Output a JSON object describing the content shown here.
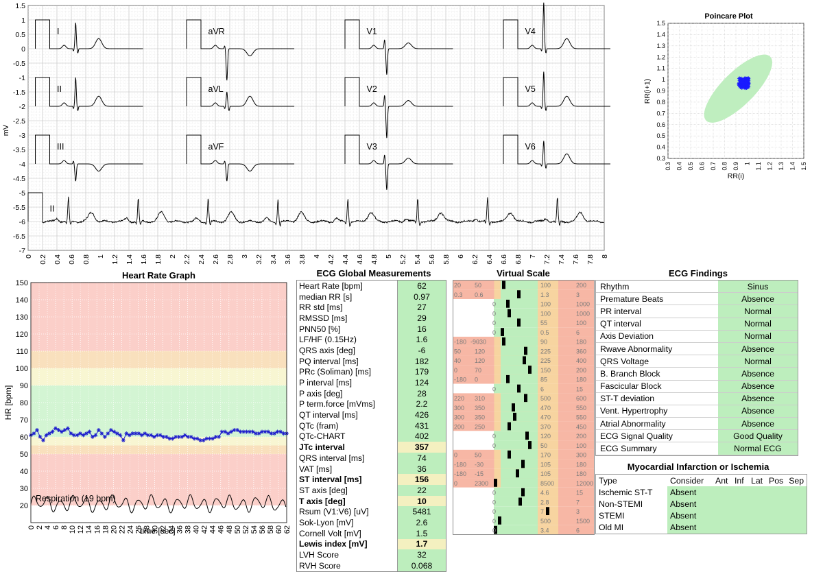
{
  "ecg": {
    "ylabel": "mV",
    "yticks": [
      "1.5",
      "1",
      "0.5",
      "0",
      "-0.5",
      "-1",
      "-1.5",
      "-2",
      "-2.5",
      "-3",
      "-3.5",
      "-4",
      "-4.5",
      "-5",
      "-5.5",
      "-6",
      "-6.5",
      "-7"
    ],
    "xticks": [
      "0",
      "0.2",
      "0.4",
      "0.6",
      "0.8",
      "1",
      "1.2",
      "1.4",
      "1.6",
      "1.8",
      "2",
      "2.2",
      "2.4",
      "2.6",
      "2.8",
      "3",
      "3.2",
      "3.4",
      "3.6",
      "3.8",
      "4",
      "4.2",
      "4.4",
      "4.6",
      "4.8",
      "5",
      "5.2",
      "5.4",
      "5.6",
      "5.8",
      "6",
      "6.2",
      "6.4",
      "6.6",
      "6.8",
      "7",
      "7.2",
      "7.4",
      "7.6",
      "7.8",
      "8"
    ],
    "leads": [
      "I",
      "aVR",
      "V1",
      "V4",
      "II",
      "aVL",
      "V2",
      "V5",
      "III",
      "aVF",
      "V3",
      "V6"
    ],
    "rhythm_lead": "II",
    "trace_color": "#000000"
  },
  "poincare": {
    "title": "Poincare Plot",
    "xlabel": "RR(i)",
    "ylabel": "RR(i+1)",
    "ticks": [
      "0.3",
      "0.4",
      "0.5",
      "0.6",
      "0.7",
      "0.8",
      "0.9",
      "1",
      "1.1",
      "1.2",
      "1.3",
      "1.4",
      "1.5"
    ],
    "ellipse_color": "#bfeebf",
    "point_color": "#1a1aff"
  },
  "hr_graph": {
    "title": "Heart Rate Graph",
    "ylabel": "HR [bpm]",
    "xlabel": "time [sec]",
    "yticks": [
      "20",
      "30",
      "40",
      "50",
      "60",
      "70",
      "80",
      "90",
      "100",
      "110",
      "120",
      "130",
      "140",
      "150"
    ],
    "xticks": [
      "0",
      "2",
      "4",
      "6",
      "8",
      "10",
      "12",
      "14",
      "16",
      "18",
      "20",
      "22",
      "24",
      "26",
      "28",
      "30",
      "32",
      "34",
      "36",
      "38",
      "40",
      "42",
      "44",
      "46",
      "48",
      "50",
      "52",
      "54",
      "56",
      "58",
      "60",
      "62"
    ],
    "respiration_label": "Respiration (19 bpm)",
    "zone_colors": {
      "red": "#fbcfc9",
      "orange": "#f9e0bd",
      "yellow": "#f8f6d2",
      "green": "#d3f5d3"
    },
    "series_color": "#1a1acc"
  },
  "chart_data": {
    "type": "line",
    "title": "Heart Rate Graph",
    "xlabel": "time [sec]",
    "ylabel": "HR [bpm]",
    "xlim": [
      0,
      62
    ],
    "ylim": [
      10,
      150
    ],
    "series": [
      {
        "values": [
          61,
          62,
          64,
          60,
          58,
          61,
          62,
          63,
          65,
          64,
          63,
          64,
          65,
          62,
          61,
          61,
          62,
          61,
          62,
          63,
          60,
          61,
          64,
          62,
          60,
          62,
          64,
          63,
          62,
          61,
          58,
          62,
          61,
          62,
          62,
          62,
          61,
          62,
          61,
          61,
          60,
          61,
          61,
          60,
          60,
          59,
          59,
          60,
          60,
          60,
          61,
          60,
          60,
          59,
          59,
          58,
          58,
          59,
          59,
          59,
          60,
          60,
          63,
          63,
          62,
          63,
          64,
          64,
          63,
          63,
          63,
          63,
          63,
          62,
          62,
          63,
          63,
          63,
          62,
          62,
          63,
          63,
          62,
          62
        ]
      }
    ]
  },
  "measurements": {
    "title": "ECG Global Measurements",
    "rows": [
      {
        "label": "Heart Rate [bpm]",
        "value": "62"
      },
      {
        "label": "median RR [s]",
        "value": "0.97"
      },
      {
        "label": "RR std [ms]",
        "value": "27"
      },
      {
        "label": "RMSSD [ms]",
        "value": "29"
      },
      {
        "label": "PNN50 [%]",
        "value": "16"
      },
      {
        "label": "LF/HF (0.15Hz)",
        "value": "1.6"
      },
      {
        "label": "QRS axis [deg]",
        "value": "-6"
      },
      {
        "label": "PQ interval [ms]",
        "value": "182"
      },
      {
        "label": "PRc (Soliman) [ms]",
        "value": "179"
      },
      {
        "label": "P interval [ms]",
        "value": "124"
      },
      {
        "label": "P axis [deg]",
        "value": "28"
      },
      {
        "label": "P term.force [mVms]",
        "value": "2.2"
      },
      {
        "label": "QT interval [ms]",
        "value": "426"
      },
      {
        "label": "QTc (fram)",
        "value": "431"
      },
      {
        "label": "QTc-CHART",
        "value": "402"
      },
      {
        "label": "JTc interval",
        "value": "357"
      },
      {
        "label": "QRS interval [ms]",
        "value": "74"
      },
      {
        "label": "VAT [ms]",
        "value": "36"
      },
      {
        "label": "ST interval [ms]",
        "value": "156"
      },
      {
        "label": "ST axis [deg]",
        "value": "22"
      },
      {
        "label": "T axis [deg]",
        "value": "10"
      },
      {
        "label": "Rsum (V1:V6) [uV]",
        "value": "5481"
      },
      {
        "label": "Sok-Lyon [mV]",
        "value": "2.6"
      },
      {
        "label": "Cornell Volt [mV]",
        "value": "1.5"
      },
      {
        "label": "Lewis index [mV]",
        "value": "1.7"
      },
      {
        "label": "LVH Score",
        "value": "32"
      },
      {
        "label": "RVH Score",
        "value": "0.068"
      }
    ]
  },
  "virtual_scale": {
    "title": "Virtual Scale",
    "rows": [
      {
        "labels": [
          "20",
          "50",
          "100",
          "200"
        ]
      },
      {
        "labels": [
          "0.3",
          "0.6",
          "1.3",
          "3"
        ]
      },
      {
        "labels": [
          "0",
          "100",
          "1000"
        ]
      },
      {
        "labels": [
          "0",
          "100",
          "1000"
        ]
      },
      {
        "labels": [
          "0",
          "55",
          "100"
        ]
      },
      {
        "labels": [
          "0",
          "0.5",
          "6"
        ]
      },
      {
        "labels": [
          "-180",
          "-90",
          "-30",
          "90",
          "180"
        ]
      },
      {
        "labels": [
          "50",
          "120",
          "225",
          "360"
        ]
      },
      {
        "labels": [
          "40",
          "120",
          "225",
          "400"
        ]
      },
      {
        "labels": [
          "0",
          "70",
          "150",
          "200"
        ]
      },
      {
        "labels": [
          "-180",
          "0",
          "85",
          "180"
        ]
      },
      {
        "labels": [
          "0",
          "6",
          "15"
        ]
      },
      {
        "labels": [
          "220",
          "310",
          "500",
          "600"
        ]
      },
      {
        "labels": [
          "300",
          "350",
          "470",
          "550"
        ]
      },
      {
        "labels": [
          "300",
          "350",
          "470",
          "550"
        ]
      },
      {
        "labels": [
          "200",
          "250",
          "370",
          "450"
        ]
      },
      {
        "labels": [
          "0",
          "120",
          "200"
        ]
      },
      {
        "labels": [
          "0",
          "50",
          "100"
        ]
      },
      {
        "labels": [
          "0",
          "50",
          "170",
          "300"
        ]
      },
      {
        "labels": [
          "-180",
          "-30",
          "105",
          "180"
        ]
      },
      {
        "labels": [
          "-180",
          "-15",
          "105",
          "180"
        ]
      },
      {
        "labels": [
          "0",
          "2300",
          "8500",
          "12000"
        ]
      },
      {
        "labels": [
          "0",
          "4.6",
          "15"
        ]
      },
      {
        "labels": [
          "0",
          "2.8",
          "7"
        ]
      },
      {
        "labels": [
          "0",
          "7",
          "3"
        ]
      },
      {
        "labels": [
          "0",
          "500",
          "1500"
        ]
      },
      {
        "labels": [
          "0",
          "3.4",
          "6"
        ]
      }
    ]
  },
  "findings": {
    "title": "ECG Findings",
    "rows": [
      {
        "label": "Rhythm",
        "value": "Sinus"
      },
      {
        "label": "Premature Beats",
        "value": "Absence"
      },
      {
        "label": "PR interval",
        "value": "Normal"
      },
      {
        "label": "QT interval",
        "value": "Normal"
      },
      {
        "label": "Axis Deviation",
        "value": "Normal"
      },
      {
        "label": "Rwave Abnormality",
        "value": "Absence"
      },
      {
        "label": "QRS Voltage",
        "value": "Normal"
      },
      {
        "label": "B. Branch Block",
        "value": "Absence"
      },
      {
        "label": "Fascicular Block",
        "value": "Absence"
      },
      {
        "label": "ST-T deviation",
        "value": "Absence"
      },
      {
        "label": "Vent. Hypertrophy",
        "value": "Absence"
      },
      {
        "label": "Atrial Abnormality",
        "value": "Absence"
      },
      {
        "label": "ECG Signal Quality",
        "value": "Good Quality"
      },
      {
        "label": "ECG Summary",
        "value": "Normal ECG"
      }
    ]
  },
  "mi": {
    "title": "Myocardial Infarction or Ischemia",
    "headers": [
      "Type",
      "Consider",
      "Ant",
      "Inf",
      "Lat",
      "Pos",
      "Sep"
    ],
    "rows": [
      {
        "label": "Ischemic ST-T",
        "value": "Absent"
      },
      {
        "label": "Non-STEMI",
        "value": "Absent"
      },
      {
        "label": "STEMI",
        "value": "Absent"
      },
      {
        "label": "Old MI",
        "value": "Absent"
      }
    ]
  }
}
